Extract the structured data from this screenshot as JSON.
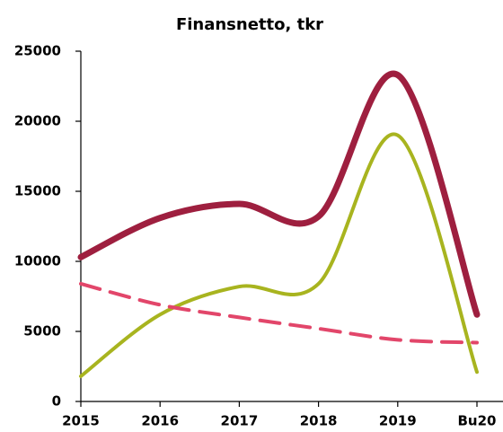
{
  "chart_data": {
    "type": "line",
    "title": "Finansnetto, tkr",
    "categories": [
      "2015",
      "2016",
      "2017",
      "2018",
      "2019",
      "Bu20"
    ],
    "series": [
      {
        "color": "#9e1f3f",
        "width": 7,
        "dash": false,
        "values": [
          10300,
          13100,
          14100,
          13200,
          23300,
          6200
        ]
      },
      {
        "color": "#a8b41f",
        "width": 4,
        "dash": false,
        "values": [
          1800,
          6200,
          8200,
          8400,
          19000,
          2100
        ]
      },
      {
        "color": "#e2466a",
        "width": 4,
        "dash": true,
        "values": [
          8400,
          6900,
          6000,
          5200,
          4400,
          4200
        ]
      }
    ],
    "ylim": [
      0,
      25000
    ],
    "yticks": [
      0,
      5000,
      10000,
      15000,
      20000,
      25000
    ],
    "grid": false
  }
}
